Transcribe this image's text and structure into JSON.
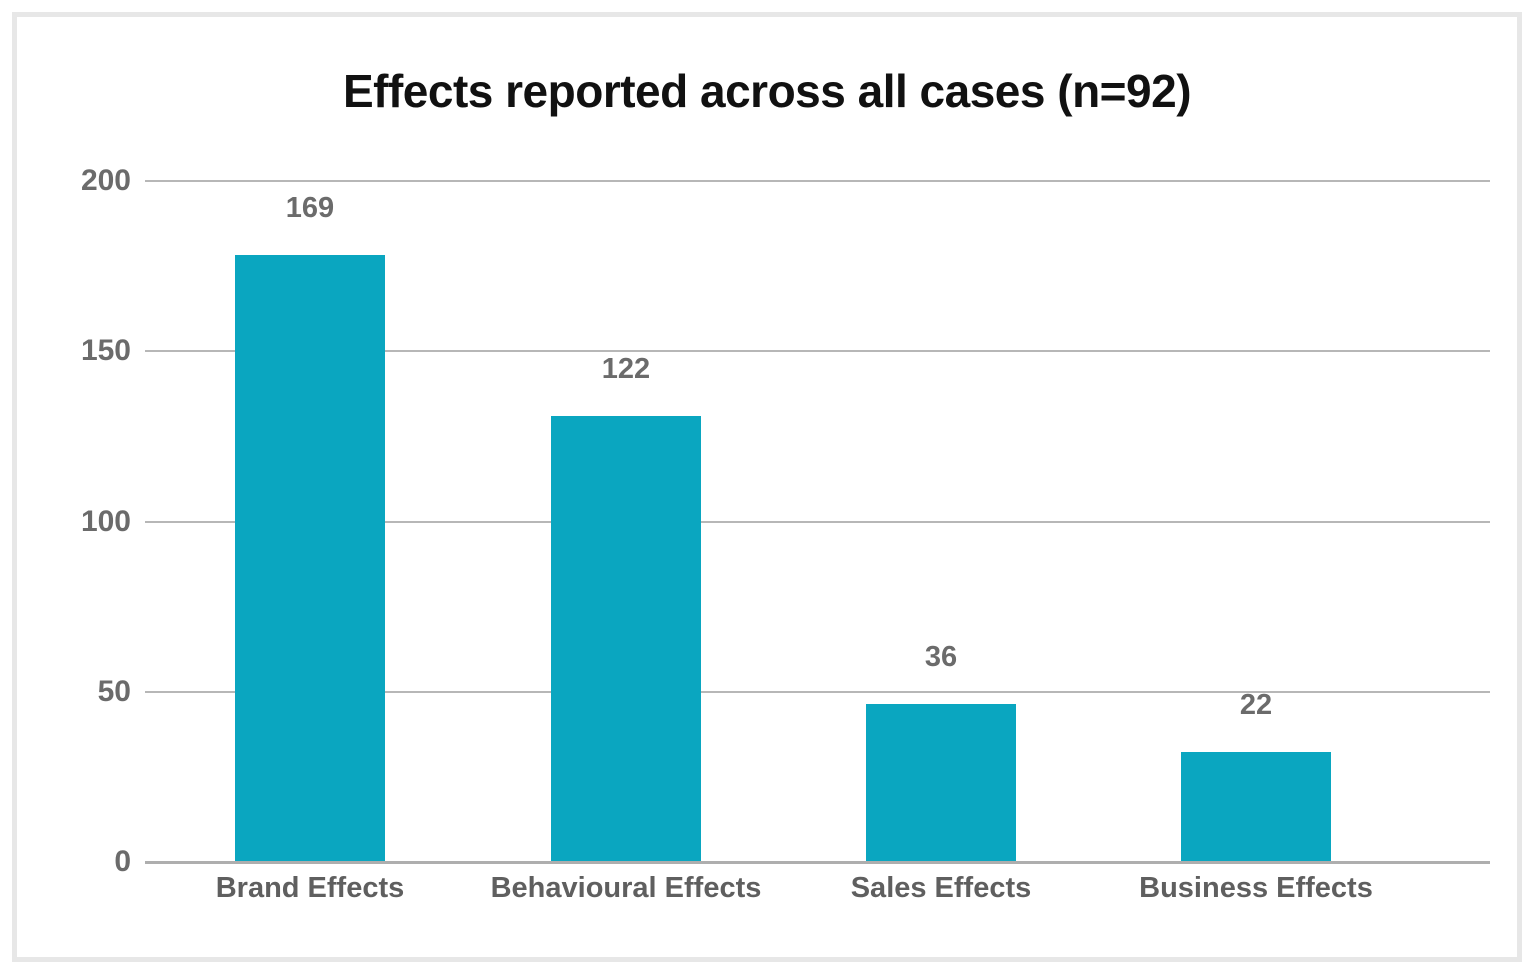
{
  "chart_data": {
    "type": "bar",
    "title": "Effects reported across all cases (n=92)",
    "categories": [
      "Brand Effects",
      "Behavioural Effects",
      "Sales Effects",
      "Business Effects"
    ],
    "values": [
      169,
      122,
      36,
      22
    ],
    "value_labels": [
      "169",
      "122",
      "36",
      "22"
    ],
    "xlabel": "",
    "ylabel": "",
    "ylim": [
      0,
      200
    ],
    "y_ticks": [
      "200",
      "150",
      "100",
      "50",
      "0"
    ],
    "grid": "horizontal-only",
    "legend": "none",
    "layout": {
      "render_heights_pct": [
        88.7,
        65.1,
        23.0,
        16.0
      ]
    }
  },
  "colors": {
    "bar": "#0aa6c0",
    "grid_line": "#b7b7b7",
    "axis_baseline": "#aeaeae",
    "tick_label": "#6b6b6b",
    "value_label": "#6b6b6b",
    "category_label": "#5f5f5f",
    "title": "#111111",
    "frame_border": "#e7e7e7",
    "background": "#ffffff"
  }
}
